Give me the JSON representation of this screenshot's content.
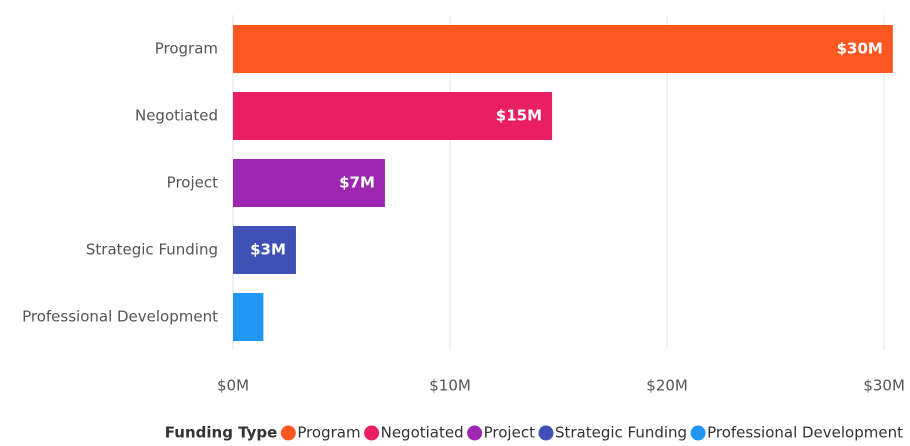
{
  "chart_data": {
    "type": "bar",
    "orientation": "horizontal",
    "categories": [
      "Program",
      "Negotiated",
      "Project",
      "Strategic Funding",
      "Professional Development"
    ],
    "values": [
      30.4,
      14.7,
      7.0,
      2.9,
      1.4
    ],
    "value_labels": [
      "$30M",
      "$15M",
      "$7M",
      "$3M",
      null
    ],
    "colors": [
      "#ff5722",
      "#e91e63",
      "#9c27b0",
      "#3f51b5",
      "#2196f3"
    ],
    "xlim": [
      0,
      30.5
    ],
    "xticks": [
      {
        "value": 0,
        "label": "$0M"
      },
      {
        "value": 10,
        "label": "$10M"
      },
      {
        "value": 20,
        "label": "$20M"
      },
      {
        "value": 30,
        "label": "$30M"
      }
    ],
    "grid": true,
    "legend": {
      "title": "Funding Type",
      "position": "bottom-right"
    }
  }
}
